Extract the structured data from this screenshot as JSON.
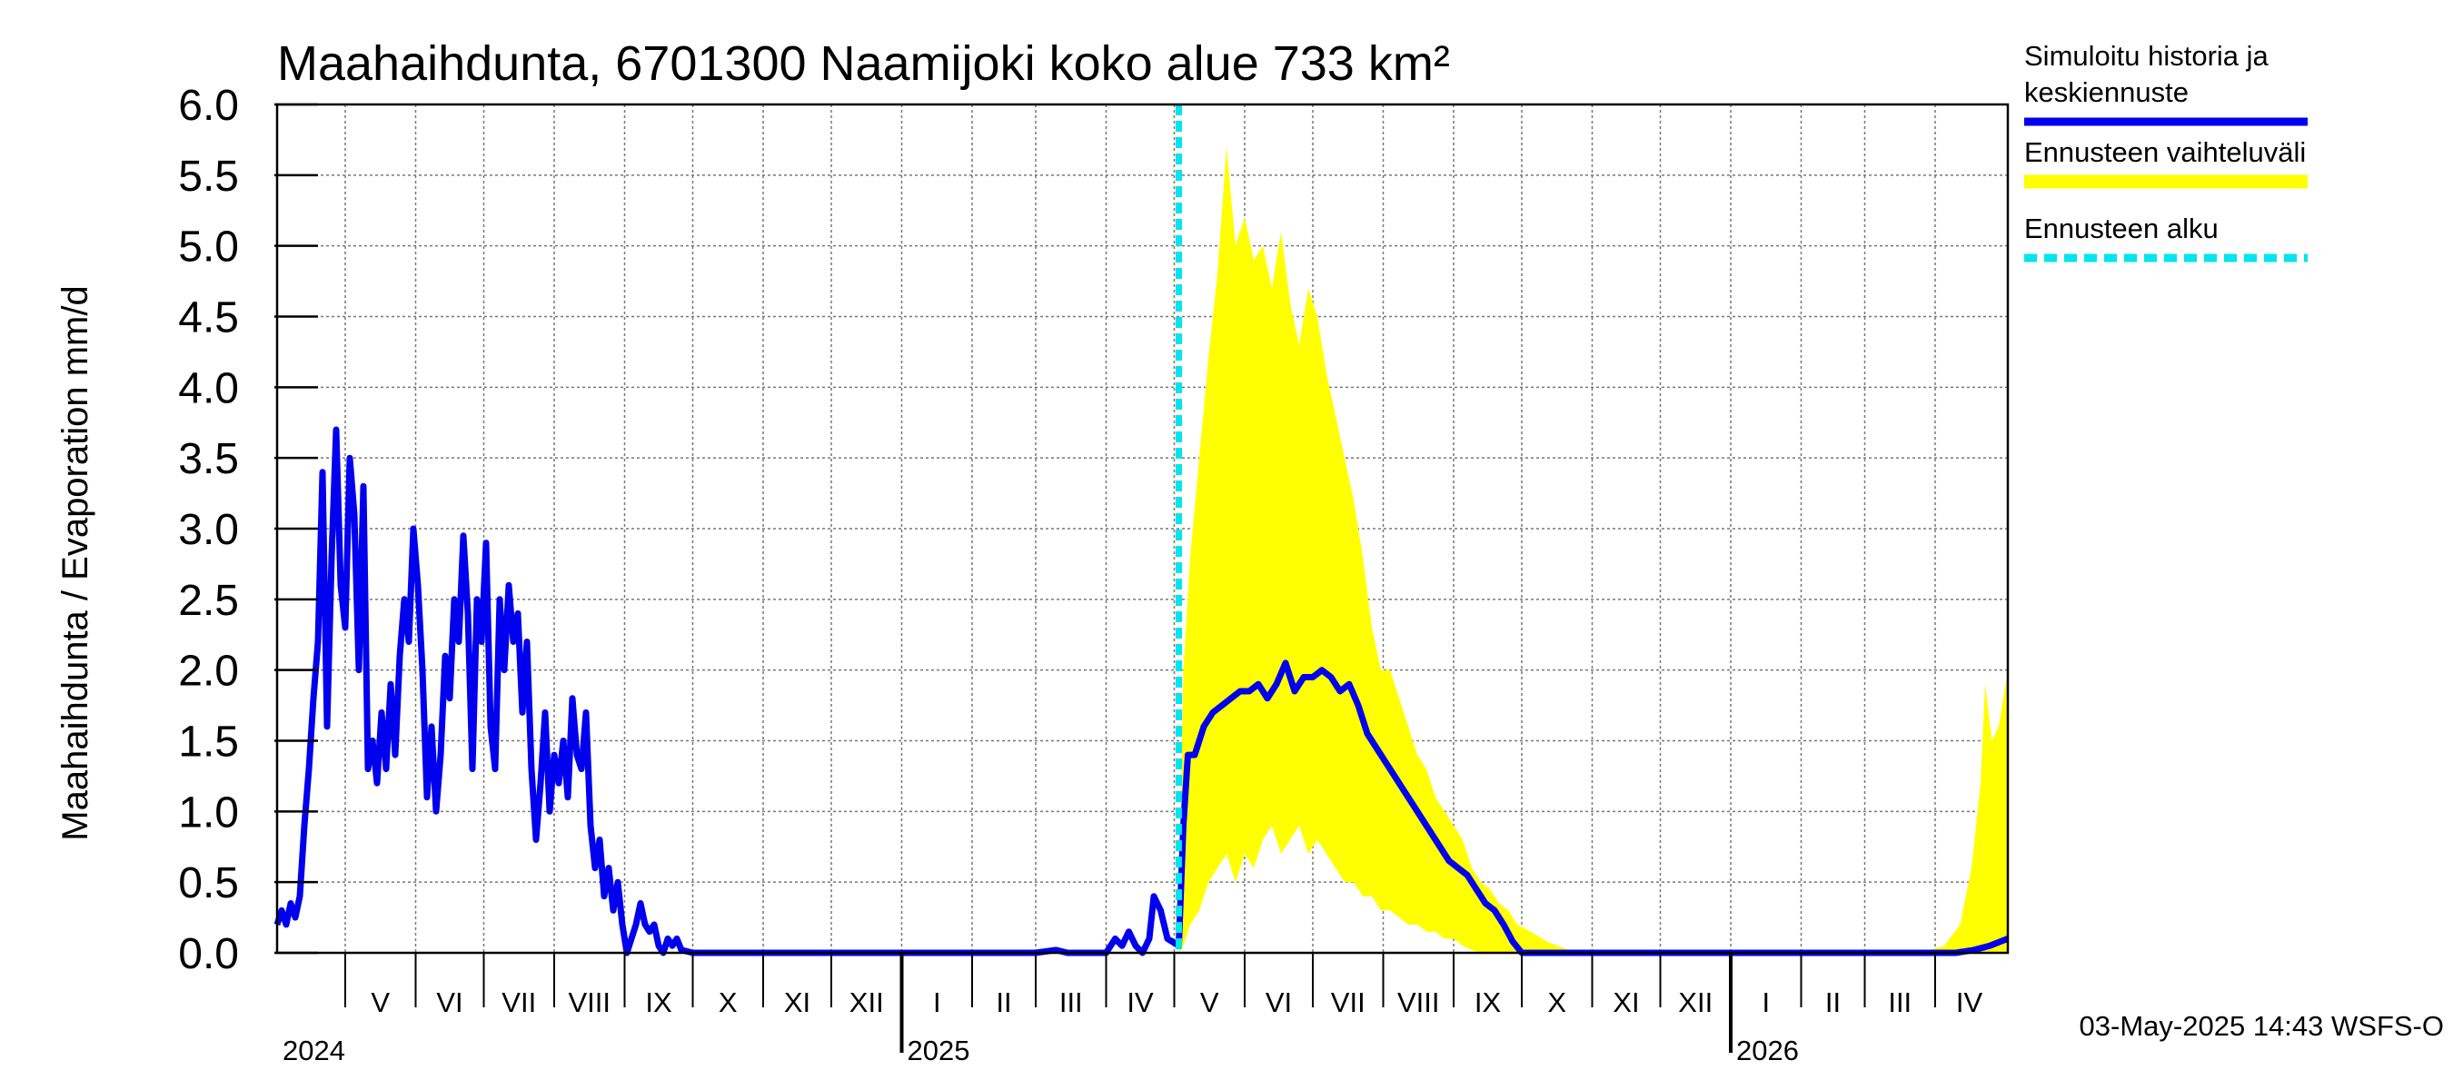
{
  "chart_data": {
    "type": "area",
    "title": "Maahaihdunta, 6701300 Naamijoki koko alue 733 km²",
    "ylabel": "Maahaihdunta / Evaporation   mm/d",
    "ylim": [
      0,
      6
    ],
    "yticks": [
      "0.0",
      "0.5",
      "1.0",
      "1.5",
      "2.0",
      "2.5",
      "3.0",
      "3.5",
      "4.0",
      "4.5",
      "5.0",
      "5.5",
      "6.0"
    ],
    "xlim": [
      "2024-04-01",
      "2026-05-03"
    ],
    "grid": true,
    "month_labels": [
      {
        "label": "V",
        "start": "2024-05-01",
        "end": "2024-06-01"
      },
      {
        "label": "VI",
        "start": "2024-06-01",
        "end": "2024-07-01"
      },
      {
        "label": "VII",
        "start": "2024-07-01",
        "end": "2024-08-01"
      },
      {
        "label": "VIII",
        "start": "2024-08-01",
        "end": "2024-09-01"
      },
      {
        "label": "IX",
        "start": "2024-09-01",
        "end": "2024-10-01"
      },
      {
        "label": "X",
        "start": "2024-10-01",
        "end": "2024-11-01"
      },
      {
        "label": "XI",
        "start": "2024-11-01",
        "end": "2024-12-01"
      },
      {
        "label": "XII",
        "start": "2024-12-01",
        "end": "2025-01-01"
      },
      {
        "label": "I",
        "start": "2025-01-01",
        "end": "2025-02-01"
      },
      {
        "label": "II",
        "start": "2025-02-01",
        "end": "2025-03-01"
      },
      {
        "label": "III",
        "start": "2025-03-01",
        "end": "2025-04-01"
      },
      {
        "label": "IV",
        "start": "2025-04-01",
        "end": "2025-05-01"
      },
      {
        "label": "V",
        "start": "2025-05-01",
        "end": "2025-06-01"
      },
      {
        "label": "VI",
        "start": "2025-06-01",
        "end": "2025-07-01"
      },
      {
        "label": "VII",
        "start": "2025-07-01",
        "end": "2025-08-01"
      },
      {
        "label": "VIII",
        "start": "2025-08-01",
        "end": "2025-09-01"
      },
      {
        "label": "IX",
        "start": "2025-09-01",
        "end": "2025-10-01"
      },
      {
        "label": "X",
        "start": "2025-10-01",
        "end": "2025-11-01"
      },
      {
        "label": "XI",
        "start": "2025-11-01",
        "end": "2025-12-01"
      },
      {
        "label": "XII",
        "start": "2025-12-01",
        "end": "2026-01-01"
      },
      {
        "label": "I",
        "start": "2026-01-01",
        "end": "2026-02-01"
      },
      {
        "label": "II",
        "start": "2026-02-01",
        "end": "2026-03-01"
      },
      {
        "label": "III",
        "start": "2026-03-01",
        "end": "2026-04-01"
      },
      {
        "label": "IV",
        "start": "2026-04-01",
        "end": "2026-05-01"
      }
    ],
    "year_labels": [
      {
        "label": "2024",
        "date": "2024-04-01"
      },
      {
        "label": "2025",
        "date": "2025-01-01"
      },
      {
        "label": "2026",
        "date": "2026-01-01"
      }
    ],
    "forecast_start": "2025-05-03",
    "series": [
      {
        "name": "Simuloitu historia ja keskiennuste",
        "color": "#0000ee",
        "points": [
          [
            "2024-04-01",
            0.2
          ],
          [
            "2024-04-03",
            0.3
          ],
          [
            "2024-04-05",
            0.2
          ],
          [
            "2024-04-07",
            0.35
          ],
          [
            "2024-04-09",
            0.25
          ],
          [
            "2024-04-11",
            0.4
          ],
          [
            "2024-04-13",
            0.9
          ],
          [
            "2024-04-15",
            1.3
          ],
          [
            "2024-04-17",
            1.8
          ],
          [
            "2024-04-19",
            2.2
          ],
          [
            "2024-04-21",
            3.4
          ],
          [
            "2024-04-23",
            1.6
          ],
          [
            "2024-04-25",
            2.8
          ],
          [
            "2024-04-27",
            3.7
          ],
          [
            "2024-04-29",
            2.6
          ],
          [
            "2024-05-01",
            2.3
          ],
          [
            "2024-05-03",
            3.5
          ],
          [
            "2024-05-05",
            3.1
          ],
          [
            "2024-05-07",
            2.0
          ],
          [
            "2024-05-09",
            3.3
          ],
          [
            "2024-05-11",
            1.3
          ],
          [
            "2024-05-13",
            1.5
          ],
          [
            "2024-05-15",
            1.2
          ],
          [
            "2024-05-17",
            1.7
          ],
          [
            "2024-05-19",
            1.3
          ],
          [
            "2024-05-21",
            1.9
          ],
          [
            "2024-05-23",
            1.4
          ],
          [
            "2024-05-25",
            2.1
          ],
          [
            "2024-05-27",
            2.5
          ],
          [
            "2024-05-29",
            2.2
          ],
          [
            "2024-05-31",
            3.0
          ],
          [
            "2024-06-02",
            2.6
          ],
          [
            "2024-06-04",
            2.0
          ],
          [
            "2024-06-06",
            1.1
          ],
          [
            "2024-06-08",
            1.6
          ],
          [
            "2024-06-10",
            1.0
          ],
          [
            "2024-06-12",
            1.4
          ],
          [
            "2024-06-14",
            2.1
          ],
          [
            "2024-06-16",
            1.8
          ],
          [
            "2024-06-18",
            2.5
          ],
          [
            "2024-06-20",
            2.2
          ],
          [
            "2024-06-22",
            2.95
          ],
          [
            "2024-06-24",
            2.4
          ],
          [
            "2024-06-26",
            1.3
          ],
          [
            "2024-06-28",
            2.5
          ],
          [
            "2024-06-30",
            2.2
          ],
          [
            "2024-07-02",
            2.9
          ],
          [
            "2024-07-04",
            1.6
          ],
          [
            "2024-07-06",
            1.3
          ],
          [
            "2024-07-08",
            2.5
          ],
          [
            "2024-07-10",
            2.0
          ],
          [
            "2024-07-12",
            2.6
          ],
          [
            "2024-07-14",
            2.2
          ],
          [
            "2024-07-16",
            2.4
          ],
          [
            "2024-07-18",
            1.7
          ],
          [
            "2024-07-20",
            2.2
          ],
          [
            "2024-07-22",
            1.3
          ],
          [
            "2024-07-24",
            0.8
          ],
          [
            "2024-07-26",
            1.2
          ],
          [
            "2024-07-28",
            1.7
          ],
          [
            "2024-07-30",
            1.0
          ],
          [
            "2024-08-01",
            1.4
          ],
          [
            "2024-08-03",
            1.2
          ],
          [
            "2024-08-05",
            1.5
          ],
          [
            "2024-08-07",
            1.1
          ],
          [
            "2024-08-09",
            1.8
          ],
          [
            "2024-08-11",
            1.4
          ],
          [
            "2024-08-13",
            1.3
          ],
          [
            "2024-08-15",
            1.7
          ],
          [
            "2024-08-17",
            0.9
          ],
          [
            "2024-08-19",
            0.6
          ],
          [
            "2024-08-21",
            0.8
          ],
          [
            "2024-08-23",
            0.4
          ],
          [
            "2024-08-25",
            0.6
          ],
          [
            "2024-08-27",
            0.3
          ],
          [
            "2024-08-29",
            0.5
          ],
          [
            "2024-08-31",
            0.2
          ],
          [
            "2024-09-02",
            0.0
          ],
          [
            "2024-09-04",
            0.1
          ],
          [
            "2024-09-06",
            0.2
          ],
          [
            "2024-09-08",
            0.35
          ],
          [
            "2024-09-10",
            0.2
          ],
          [
            "2024-09-12",
            0.15
          ],
          [
            "2024-09-14",
            0.2
          ],
          [
            "2024-09-16",
            0.05
          ],
          [
            "2024-09-18",
            0.0
          ],
          [
            "2024-09-20",
            0.1
          ],
          [
            "2024-09-22",
            0.05
          ],
          [
            "2024-09-24",
            0.1
          ],
          [
            "2024-09-26",
            0.02
          ],
          [
            "2024-10-01",
            0.0
          ],
          [
            "2025-01-01",
            0.0
          ],
          [
            "2025-03-01",
            0.0
          ],
          [
            "2025-03-10",
            0.02
          ],
          [
            "2025-03-15",
            0.0
          ],
          [
            "2025-04-01",
            0.0
          ],
          [
            "2025-04-05",
            0.1
          ],
          [
            "2025-04-08",
            0.05
          ],
          [
            "2025-04-11",
            0.15
          ],
          [
            "2025-04-14",
            0.05
          ],
          [
            "2025-04-17",
            0.0
          ],
          [
            "2025-04-20",
            0.1
          ],
          [
            "2025-04-22",
            0.4
          ],
          [
            "2025-04-25",
            0.3
          ],
          [
            "2025-04-28",
            0.1
          ],
          [
            "2025-05-03",
            0.05
          ],
          [
            "2025-05-05",
            0.9
          ],
          [
            "2025-05-07",
            1.4
          ],
          [
            "2025-05-10",
            1.4
          ],
          [
            "2025-05-14",
            1.6
          ],
          [
            "2025-05-18",
            1.7
          ],
          [
            "2025-05-22",
            1.75
          ],
          [
            "2025-05-26",
            1.8
          ],
          [
            "2025-05-30",
            1.85
          ],
          [
            "2025-06-03",
            1.85
          ],
          [
            "2025-06-07",
            1.9
          ],
          [
            "2025-06-11",
            1.8
          ],
          [
            "2025-06-15",
            1.9
          ],
          [
            "2025-06-19",
            2.05
          ],
          [
            "2025-06-23",
            1.85
          ],
          [
            "2025-06-27",
            1.95
          ],
          [
            "2025-07-01",
            1.95
          ],
          [
            "2025-07-05",
            2.0
          ],
          [
            "2025-07-09",
            1.95
          ],
          [
            "2025-07-13",
            1.85
          ],
          [
            "2025-07-17",
            1.9
          ],
          [
            "2025-07-21",
            1.75
          ],
          [
            "2025-07-25",
            1.55
          ],
          [
            "2025-07-29",
            1.45
          ],
          [
            "2025-08-02",
            1.35
          ],
          [
            "2025-08-06",
            1.25
          ],
          [
            "2025-08-10",
            1.15
          ],
          [
            "2025-08-14",
            1.05
          ],
          [
            "2025-08-18",
            0.95
          ],
          [
            "2025-08-22",
            0.85
          ],
          [
            "2025-08-26",
            0.75
          ],
          [
            "2025-08-30",
            0.65
          ],
          [
            "2025-09-03",
            0.6
          ],
          [
            "2025-09-07",
            0.55
          ],
          [
            "2025-09-11",
            0.45
          ],
          [
            "2025-09-15",
            0.35
          ],
          [
            "2025-09-19",
            0.3
          ],
          [
            "2025-09-23",
            0.2
          ],
          [
            "2025-09-27",
            0.08
          ],
          [
            "2025-10-01",
            0.0
          ],
          [
            "2026-04-10",
            0.0
          ],
          [
            "2026-04-18",
            0.02
          ],
          [
            "2026-04-25",
            0.05
          ],
          [
            "2026-05-03",
            0.1
          ]
        ]
      },
      {
        "name": "Ennusteen vaihteluväli",
        "color": "#ffff00",
        "band": [
          [
            "2025-05-03",
            0.0,
            0.2
          ],
          [
            "2025-05-05",
            0.05,
            2.0
          ],
          [
            "2025-05-08",
            0.2,
            2.8
          ],
          [
            "2025-05-12",
            0.3,
            3.5
          ],
          [
            "2025-05-16",
            0.5,
            4.2
          ],
          [
            "2025-05-20",
            0.6,
            4.8
          ],
          [
            "2025-05-24",
            0.7,
            5.7
          ],
          [
            "2025-05-28",
            0.5,
            5.0
          ],
          [
            "2025-06-01",
            0.7,
            5.2
          ],
          [
            "2025-06-05",
            0.6,
            4.9
          ],
          [
            "2025-06-09",
            0.8,
            5.0
          ],
          [
            "2025-06-13",
            0.9,
            4.7
          ],
          [
            "2025-06-17",
            0.7,
            5.1
          ],
          [
            "2025-06-21",
            0.8,
            4.6
          ],
          [
            "2025-06-25",
            0.9,
            4.3
          ],
          [
            "2025-06-29",
            0.7,
            4.7
          ],
          [
            "2025-07-03",
            0.8,
            4.5
          ],
          [
            "2025-07-07",
            0.7,
            4.1
          ],
          [
            "2025-07-11",
            0.6,
            3.8
          ],
          [
            "2025-07-15",
            0.5,
            3.5
          ],
          [
            "2025-07-19",
            0.5,
            3.2
          ],
          [
            "2025-07-23",
            0.4,
            2.8
          ],
          [
            "2025-07-27",
            0.4,
            2.3
          ],
          [
            "2025-07-31",
            0.3,
            2.0
          ],
          [
            "2025-08-04",
            0.3,
            2.0
          ],
          [
            "2025-08-08",
            0.25,
            1.8
          ],
          [
            "2025-08-12",
            0.2,
            1.6
          ],
          [
            "2025-08-16",
            0.2,
            1.4
          ],
          [
            "2025-08-20",
            0.15,
            1.3
          ],
          [
            "2025-08-24",
            0.15,
            1.1
          ],
          [
            "2025-08-28",
            0.1,
            1.0
          ],
          [
            "2025-09-01",
            0.1,
            0.9
          ],
          [
            "2025-09-05",
            0.05,
            0.8
          ],
          [
            "2025-09-09",
            0.02,
            0.6
          ],
          [
            "2025-09-13",
            0.0,
            0.5
          ],
          [
            "2025-09-17",
            0.0,
            0.45
          ],
          [
            "2025-09-21",
            0.0,
            0.35
          ],
          [
            "2025-09-25",
            0.0,
            0.3
          ],
          [
            "2025-09-29",
            0.0,
            0.2
          ],
          [
            "2025-10-05",
            0.0,
            0.15
          ],
          [
            "2025-10-12",
            0.0,
            0.08
          ],
          [
            "2025-10-20",
            0.0,
            0.03
          ],
          [
            "2025-10-28",
            0.0,
            0.0
          ],
          [
            "2026-03-25",
            0.0,
            0.0
          ],
          [
            "2026-04-05",
            0.0,
            0.05
          ],
          [
            "2026-04-12",
            0.0,
            0.2
          ],
          [
            "2026-04-17",
            0.0,
            0.6
          ],
          [
            "2026-04-21",
            0.0,
            1.2
          ],
          [
            "2026-04-23",
            0.0,
            1.9
          ],
          [
            "2026-04-26",
            0.0,
            1.5
          ],
          [
            "2026-04-29",
            0.0,
            1.6
          ],
          [
            "2026-05-03",
            0.0,
            2.0
          ]
        ]
      },
      {
        "name": "Ennusteen alku",
        "color": "#00e5ee"
      }
    ],
    "legend": {
      "placement": "right",
      "entries": [
        {
          "lines": [
            "Simuloitu historia ja",
            "keskiennuste"
          ],
          "color": "#0000ee",
          "style": "solid"
        },
        {
          "lines": [
            "Ennusteen vaihteluväli"
          ],
          "color": "#ffff00",
          "style": "solid"
        },
        {
          "lines": [
            "Ennusteen alku"
          ],
          "color": "#00e5ee",
          "style": "dashed"
        }
      ]
    },
    "footer": "03-May-2025 14:43 WSFS-O"
  }
}
